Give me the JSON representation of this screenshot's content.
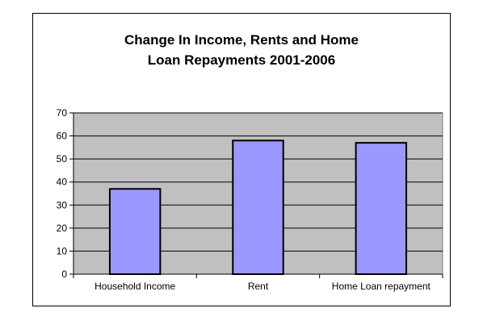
{
  "chart_data": {
    "type": "bar",
    "title_lines": [
      "Change In Income, Rents and  Home",
      "Loan Repayments 2001-2006"
    ],
    "categories": [
      "Household Income",
      "Rent",
      "Home Loan repayment"
    ],
    "values": [
      37,
      58,
      57
    ],
    "ylim": [
      0,
      70
    ],
    "yticks": [
      0,
      10,
      20,
      30,
      40,
      50,
      60,
      70
    ],
    "grid": true,
    "legend": "none",
    "colors": {
      "bar_fill": "#9999ff",
      "bar_stroke": "#000000",
      "plot_background": "#c0c0c0",
      "gridline": "#000000"
    }
  }
}
